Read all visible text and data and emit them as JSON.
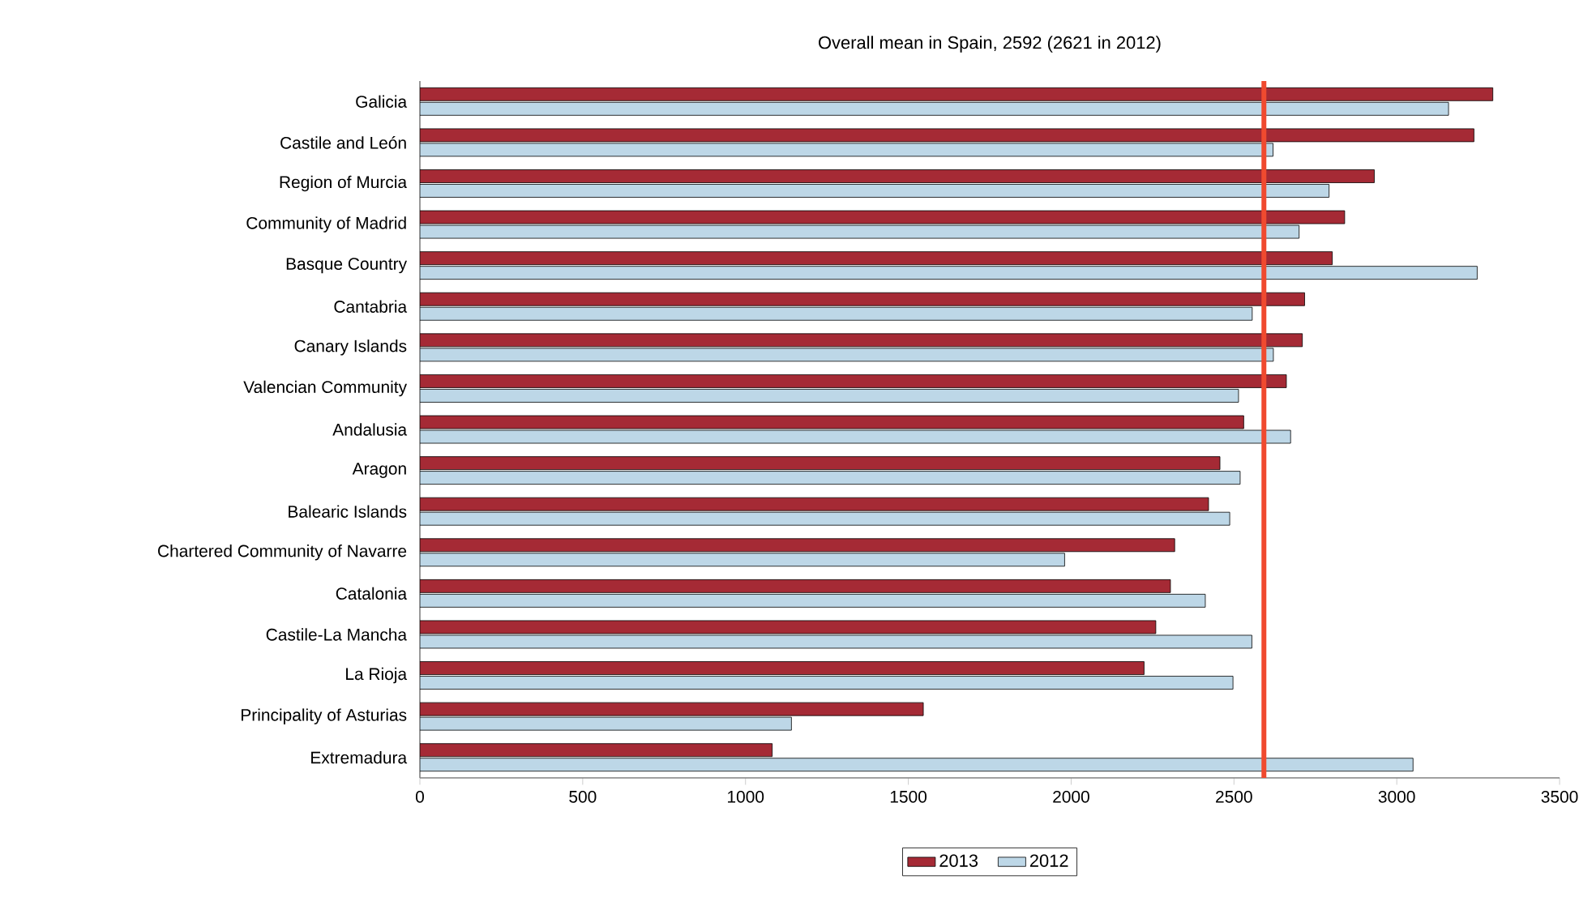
{
  "chart_data": {
    "type": "bar",
    "orientation": "horizontal",
    "title": "Overall mean in Spain, 2592 (2621 in 2012)",
    "categories": [
      "Galicia",
      "Castile and León",
      "Region of Murcia",
      "Community of Madrid",
      "Basque Country",
      "Cantabria",
      "Canary Islands",
      "Valencian Community",
      "Andalusia",
      "Aragon",
      "Balearic Islands",
      "Chartered Community of Navarre",
      "Catalonia",
      "Castile-La Mancha",
      "La Rioja",
      "Principality of Asturias",
      "Extremadura"
    ],
    "series": [
      {
        "name": "2013",
        "color": "#a52a35",
        "values": [
          3295,
          3237,
          2931,
          2840,
          2802,
          2717,
          2710,
          2661,
          2530,
          2457,
          2422,
          2318,
          2305,
          2260,
          2224,
          1546,
          1082
        ]
      },
      {
        "name": "2012",
        "color": "#bdd7e7",
        "values": [
          3159,
          2620,
          2792,
          2700,
          3247,
          2556,
          2621,
          2514,
          2674,
          2519,
          2487,
          1980,
          2412,
          2555,
          2497,
          1141,
          3050
        ]
      }
    ],
    "xlim": [
      0,
      3500
    ],
    "xticks": [
      0,
      500,
      1000,
      1500,
      2000,
      2500,
      3000,
      3500
    ],
    "ref_lines": [
      {
        "axis": "x",
        "value": 2592,
        "color": "#f04a2f"
      }
    ],
    "grid": false,
    "legend": "bottom"
  }
}
